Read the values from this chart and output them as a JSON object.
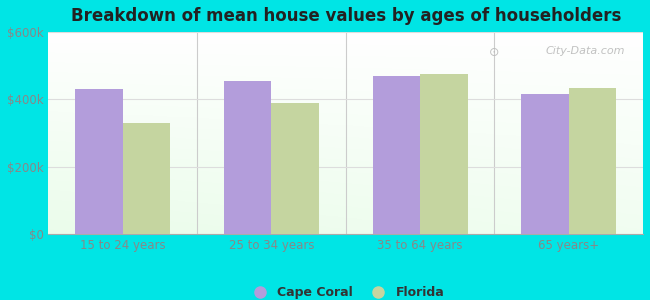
{
  "title": "Breakdown of mean house values by ages of householders",
  "categories": [
    "15 to 24 years",
    "25 to 34 years",
    "35 to 64 years",
    "65 years+"
  ],
  "cape_coral": [
    430000,
    455000,
    470000,
    415000
  ],
  "florida": [
    330000,
    390000,
    475000,
    435000
  ],
  "bar_color_coral": "#b39ddb",
  "bar_color_florida": "#c5d5a0",
  "background_color": "#00e5e5",
  "ylim": [
    0,
    600000
  ],
  "yticks": [
    0,
    200000,
    400000,
    600000
  ],
  "ytick_labels": [
    "$0",
    "$200k",
    "$400k",
    "$600k"
  ],
  "legend_coral": "Cape Coral",
  "legend_florida": "Florida",
  "watermark": "City-Data.com",
  "bar_width": 0.32,
  "tick_color": "#888888",
  "separator_color": "#cccccc",
  "grid_color": "#dddddd"
}
